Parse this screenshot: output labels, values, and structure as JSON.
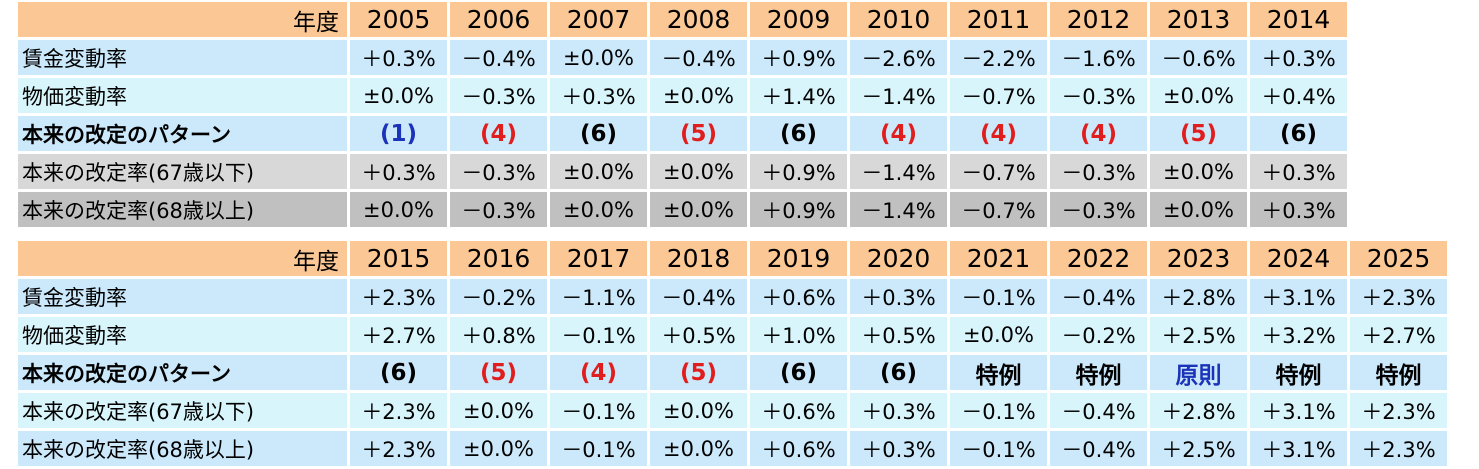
{
  "labels": {
    "year": "年度",
    "wage": "賃金変動率",
    "price": "物価変動率",
    "pattern": "本来の改定のパターン",
    "rate67": "本来の改定率(67歳以下)",
    "rate68": "本来の改定率(68歳以上)"
  },
  "colors": {
    "header": "#fbc895",
    "light_blue": "#cce9fb",
    "lighter_blue": "#d8f5fb",
    "gray": "#d8d8d8",
    "dark_gray": "#c0c0c0",
    "blue_text": "#1a33b8",
    "red_text": "#e01e1e"
  },
  "table1": {
    "years": [
      "2005",
      "2006",
      "2007",
      "2008",
      "2009",
      "2010",
      "2011",
      "2012",
      "2013",
      "2014"
    ],
    "wage": [
      "＋0.3%",
      "－0.4%",
      "±0.0%",
      "－0.4%",
      "＋0.9%",
      "－2.6%",
      "－2.2%",
      "－1.6%",
      "－0.6%",
      "＋0.3%"
    ],
    "price": [
      "±0.0%",
      "－0.3%",
      "＋0.3%",
      "±0.0%",
      "＋1.4%",
      "－1.4%",
      "－0.7%",
      "－0.3%",
      "±0.0%",
      "＋0.4%"
    ],
    "pattern": [
      {
        "text": "(1)",
        "color": "blue"
      },
      {
        "text": "(4)",
        "color": "red"
      },
      {
        "text": "(6)",
        "color": "black"
      },
      {
        "text": "(5)",
        "color": "red"
      },
      {
        "text": "(6)",
        "color": "black"
      },
      {
        "text": "(4)",
        "color": "red"
      },
      {
        "text": "(4)",
        "color": "red"
      },
      {
        "text": "(4)",
        "color": "red"
      },
      {
        "text": "(5)",
        "color": "red"
      },
      {
        "text": "(6)",
        "color": "black"
      }
    ],
    "rate67": [
      "＋0.3%",
      "－0.3%",
      "±0.0%",
      "±0.0%",
      "＋0.9%",
      "－1.4%",
      "－0.7%",
      "－0.3%",
      "±0.0%",
      "＋0.3%"
    ],
    "rate68": [
      "±0.0%",
      "－0.3%",
      "±0.0%",
      "±0.0%",
      "＋0.9%",
      "－1.4%",
      "－0.7%",
      "－0.3%",
      "±0.0%",
      "＋0.3%"
    ]
  },
  "table2": {
    "years": [
      "2015",
      "2016",
      "2017",
      "2018",
      "2019",
      "2020",
      "2021",
      "2022",
      "2023",
      "2024",
      "2025"
    ],
    "wage": [
      "＋2.3%",
      "－0.2%",
      "－1.1%",
      "－0.4%",
      "＋0.6%",
      "＋0.3%",
      "－0.1%",
      "－0.4%",
      "＋2.8%",
      "＋3.1%",
      "＋2.3%"
    ],
    "price": [
      "＋2.7%",
      "＋0.8%",
      "－0.1%",
      "＋0.5%",
      "＋1.0%",
      "＋0.5%",
      "±0.0%",
      "－0.2%",
      "＋2.5%",
      "＋3.2%",
      "＋2.7%"
    ],
    "pattern": [
      {
        "text": "(6)",
        "color": "black"
      },
      {
        "text": "(5)",
        "color": "red"
      },
      {
        "text": "(4)",
        "color": "red"
      },
      {
        "text": "(5)",
        "color": "red"
      },
      {
        "text": "(6)",
        "color": "black"
      },
      {
        "text": "(6)",
        "color": "black"
      },
      {
        "text": "特例",
        "color": "black"
      },
      {
        "text": "特例",
        "color": "black"
      },
      {
        "text": "原則",
        "color": "blue"
      },
      {
        "text": "特例",
        "color": "black"
      },
      {
        "text": "特例",
        "color": "black"
      }
    ],
    "rate67": [
      "＋2.3%",
      "±0.0%",
      "－0.1%",
      "±0.0%",
      "＋0.6%",
      "＋0.3%",
      "－0.1%",
      "－0.4%",
      "＋2.8%",
      "＋3.1%",
      "＋2.3%"
    ],
    "rate68": [
      "＋2.3%",
      "±0.0%",
      "－0.1%",
      "±0.0%",
      "＋0.6%",
      "＋0.3%",
      "－0.1%",
      "－0.4%",
      "＋2.5%",
      "＋3.1%",
      "＋2.3%"
    ]
  }
}
